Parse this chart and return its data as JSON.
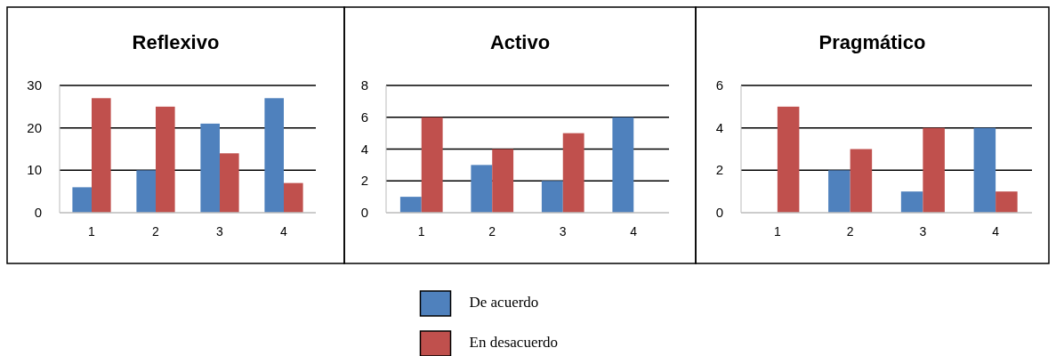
{
  "chart_data": [
    {
      "type": "bar",
      "title": "Reflexivo",
      "categories": [
        "1",
        "2",
        "3",
        "4"
      ],
      "series": [
        {
          "color": "#4f81bd",
          "values": [
            6,
            10,
            21,
            27
          ]
        },
        {
          "color": "#c0504d",
          "values": [
            27,
            25,
            14,
            7
          ]
        }
      ],
      "ylim": [
        0,
        30
      ],
      "yticks": [
        0,
        10,
        20,
        30
      ],
      "grid": "y"
    },
    {
      "type": "bar",
      "title": "Activo",
      "categories": [
        "1",
        "2",
        "3",
        "4"
      ],
      "series": [
        {
          "name": "De acuerdo",
          "color": "#4f81bd",
          "values": [
            1,
            3,
            2,
            6
          ]
        },
        {
          "name": "En desacuerdo",
          "color": "#c0504d",
          "values": [
            6,
            4,
            5,
            0
          ]
        }
      ],
      "ylim": [
        0,
        8
      ],
      "yticks": [
        0,
        2,
        4,
        6,
        8
      ],
      "grid": "y",
      "legend": "bottom"
    },
    {
      "type": "bar",
      "title": "Pragmático",
      "categories": [
        "1",
        "2",
        "3",
        "4"
      ],
      "series": [
        {
          "color": "#4f81bd",
          "values": [
            0,
            2,
            1,
            4
          ]
        },
        {
          "color": "#c0504d",
          "values": [
            5,
            3,
            4,
            1
          ]
        }
      ],
      "ylim": [
        0,
        6
      ],
      "yticks": [
        0,
        2,
        4,
        6
      ],
      "grid": "y"
    }
  ]
}
